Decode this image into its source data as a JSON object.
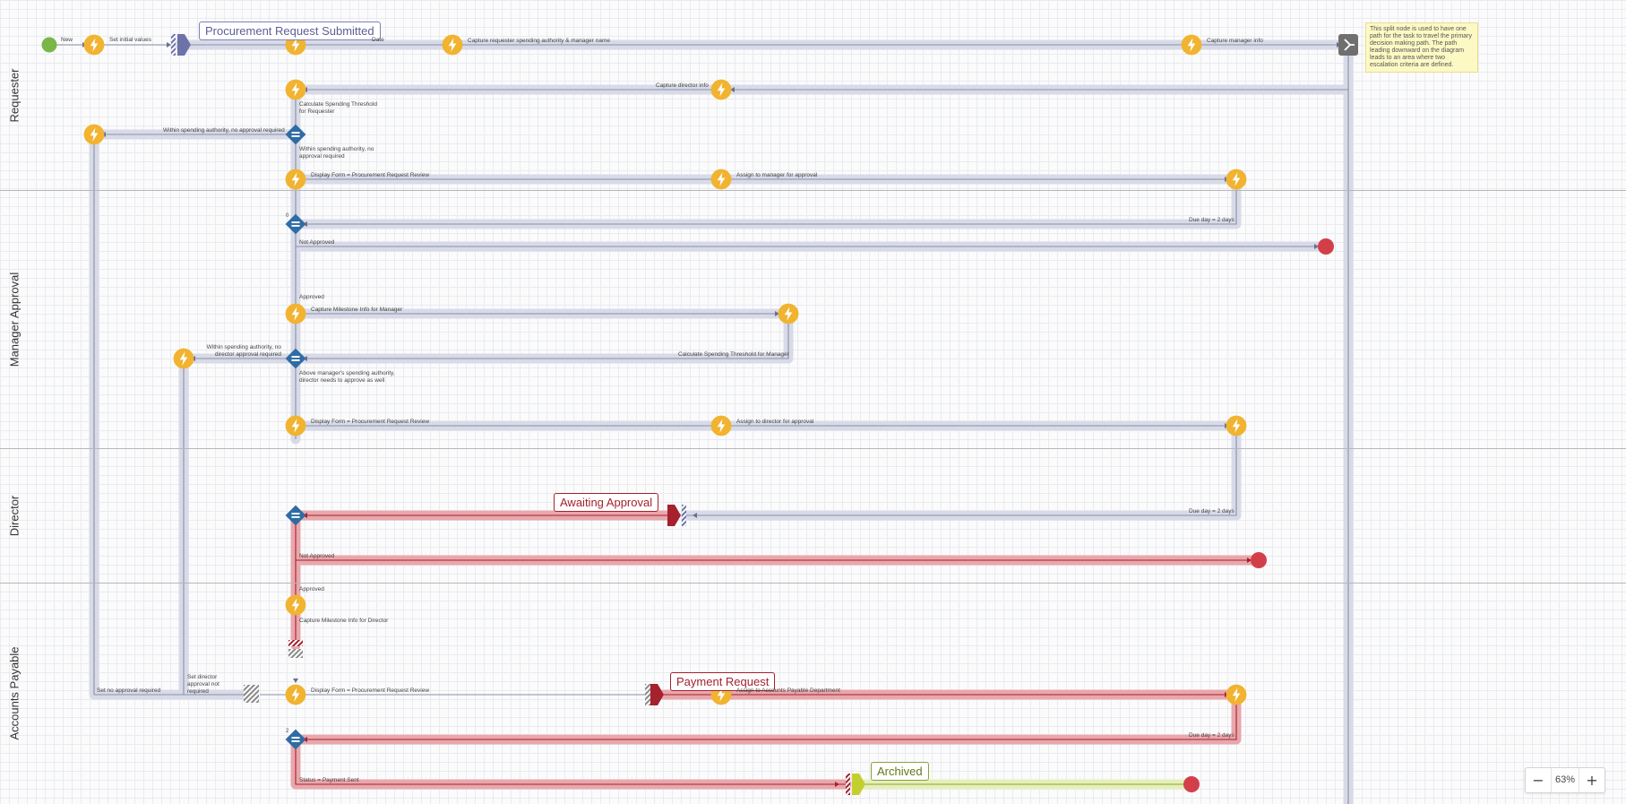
{
  "lanes": [
    "Requester",
    "Manager Approval",
    "Director",
    "Accounts Payable"
  ],
  "milestones": {
    "submitted": "Procurement Request Submitted",
    "awaiting": "Awaiting Approval",
    "payment": "Payment Request",
    "archived": "Archived"
  },
  "note": "This split node is used to have one path for the task to travel the primary decision making path. The path leading downward on the diagram leads to an area where two escalation criteria are defined.",
  "labels": {
    "new": "New",
    "set_initial": "Set initial values",
    "date": "Date",
    "capture_requester": "Capture requester spending authority & manager name",
    "capture_manager": "Capture manager info",
    "capture_director": "Capture director info",
    "calc_requester": "Calculate Spending Threshold for Requester",
    "within_req_left": "Within spending authority, no approval required",
    "within_req_down": "Within spending authority, no approval required",
    "display_form_1": "Display Form = Procurement Request Review",
    "assign_manager": "Assign to manager for approval",
    "due_1": "Due day = 2 days",
    "not_approved_1": "Not Approved",
    "approved_1": "Approved",
    "capture_ms_manager": "Capture Milestone Info for Manager",
    "within_mgr": "Within spending authority, no director approval required",
    "calc_manager": "Calculate Spending Threshold for Manager",
    "above_mgr": "Above manager's spending authority, director needs to approve as well",
    "display_form_2": "Display Form = Procurement Request Review",
    "assign_director": "Assign to director for approval",
    "due_2": "Due day = 2 days",
    "not_approved_2": "Not Approved",
    "approved_2": "Approved",
    "capture_ms_director": "Capture Milestone Info for Director",
    "set_no_approval": "Set no approval required",
    "set_director_not_req": "Set director approval not required",
    "display_form_3": "Display Form = Procurement Request Review",
    "assign_ap": "Assign to Accounts Payable Department",
    "due_3": "Due day = 2 days",
    "status_paid": "Status = Payment Sent",
    "count_1": "0",
    "count_2": "2"
  },
  "zoom": {
    "level": "63%",
    "minus": "−",
    "plus": "+"
  },
  "colors": {
    "lightning": "#f1b330",
    "decision": "#2e6ca4",
    "end": "#d33f49",
    "start": "#7ab648",
    "path_blue": "#d8dbe7",
    "path_red": "#e9a7ac",
    "path_green": "#e5efb8"
  }
}
